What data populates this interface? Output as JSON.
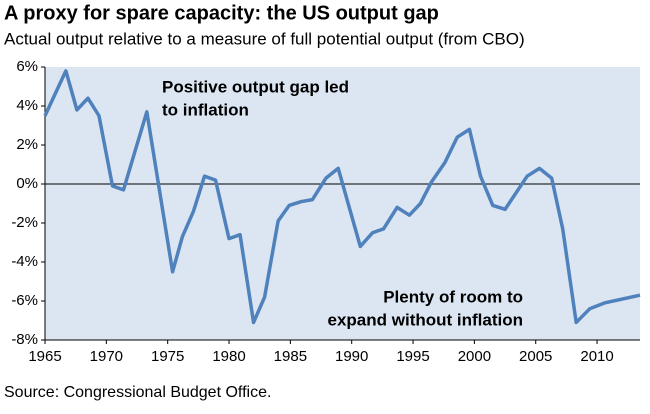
{
  "chart_data": {
    "type": "line",
    "title": "A proxy for spare capacity:  the US output gap",
    "subtitle": "Actual output relative to a measure of full potential output (from CBO)",
    "source": "Source: Congressional Budget Office.",
    "annotations": [
      {
        "lines": [
          "Positive output gap led",
          "to inflation"
        ]
      },
      {
        "lines": [
          "Plenty of room to",
          "expand without inflation"
        ]
      }
    ],
    "xlim": [
      1965,
      2013.5
    ],
    "xticks": [
      1965,
      1970,
      1975,
      1980,
      1985,
      1990,
      1995,
      2000,
      2005,
      2010
    ],
    "ylim": [
      -8,
      6
    ],
    "yticks": [
      {
        "value": -8,
        "label": "-8%"
      },
      {
        "value": -6,
        "label": "-6%"
      },
      {
        "value": -4,
        "label": "-4%"
      },
      {
        "value": -2,
        "label": "-2%"
      },
      {
        "value": 0,
        "label": "0%"
      },
      {
        "value": 2,
        "label": "2%"
      },
      {
        "value": 4,
        "label": "4%"
      },
      {
        "value": 6,
        "label": "6%"
      }
    ],
    "zero_line": true,
    "background": "#dce6f2",
    "series": [
      {
        "color": "#4f81bd",
        "x": [
          1965.0,
          1966.7,
          1967.6,
          1968.5,
          1969.4,
          1970.5,
          1971.4,
          1972.3,
          1973.3,
          1975.4,
          1976.2,
          1977.1,
          1978.0,
          1978.9,
          1980.0,
          1980.9,
          1982.0,
          1982.9,
          1984.0,
          1984.9,
          1985.9,
          1986.8,
          1987.9,
          1988.9,
          1990.7,
          1991.7,
          1992.6,
          1993.7,
          1994.7,
          1995.6,
          1996.5,
          1997.6,
          1998.6,
          1999.6,
          2000.5,
          2001.5,
          2002.5,
          2004.3,
          2005.3,
          2006.3,
          2007.2,
          2008.3,
          2009.4,
          2010.6,
          2013.5
        ],
        "values": [
          3.5,
          5.8,
          3.8,
          4.4,
          3.5,
          -0.1,
          -0.3,
          1.6,
          3.7,
          -4.5,
          -2.7,
          -1.4,
          0.4,
          0.2,
          -2.8,
          -2.6,
          -7.1,
          -5.8,
          -1.9,
          -1.1,
          -0.9,
          -0.8,
          0.3,
          0.8,
          -3.2,
          -2.5,
          -2.3,
          -1.2,
          -1.6,
          -1.0,
          0.1,
          1.1,
          2.4,
          2.8,
          0.4,
          -1.1,
          -1.3,
          0.4,
          0.8,
          0.3,
          -2.3,
          -7.1,
          -6.4,
          -6.1,
          -5.7
        ]
      }
    ]
  }
}
